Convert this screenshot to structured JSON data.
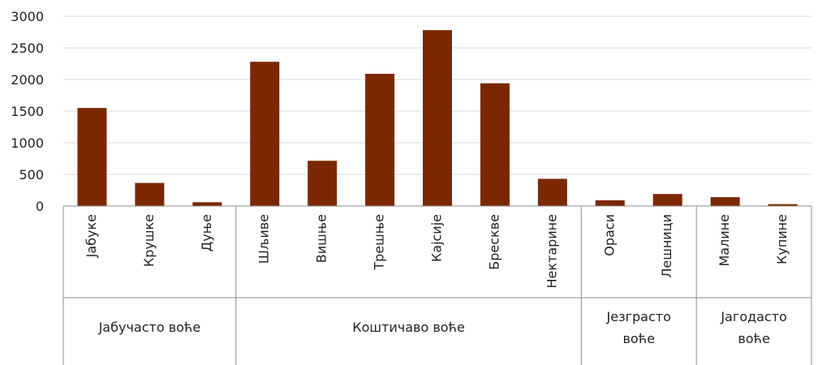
{
  "chart_data": {
    "type": "bar",
    "title": "",
    "xlabel": "",
    "ylabel": "",
    "ylim": [
      0,
      3000
    ],
    "yticks": [
      "0",
      "500",
      "1000",
      "1500",
      "2000",
      "2500",
      "3000"
    ],
    "grid": true,
    "legend": "none",
    "bar_color": "#7b2800",
    "categories": [
      "Јабуке",
      "Крушке",
      "Дуње",
      "Шљиве",
      "Вишње",
      "Трешње",
      "Кајсије",
      "Брескве",
      "Нектарине",
      "Ораси",
      "Лешници",
      "Малине",
      "Купине"
    ],
    "values": [
      1550,
      365,
      60,
      2280,
      715,
      2090,
      2780,
      1940,
      430,
      90,
      190,
      140,
      30
    ],
    "groups": [
      {
        "label_lines": [
          "Јабучасто воће"
        ],
        "count": 3
      },
      {
        "label_lines": [
          "Коштичаво воће"
        ],
        "count": 6
      },
      {
        "label_lines": [
          "Језграсто",
          "воће"
        ],
        "count": 2
      },
      {
        "label_lines": [
          "Јагодасто",
          "воће"
        ],
        "count": 2
      }
    ]
  }
}
